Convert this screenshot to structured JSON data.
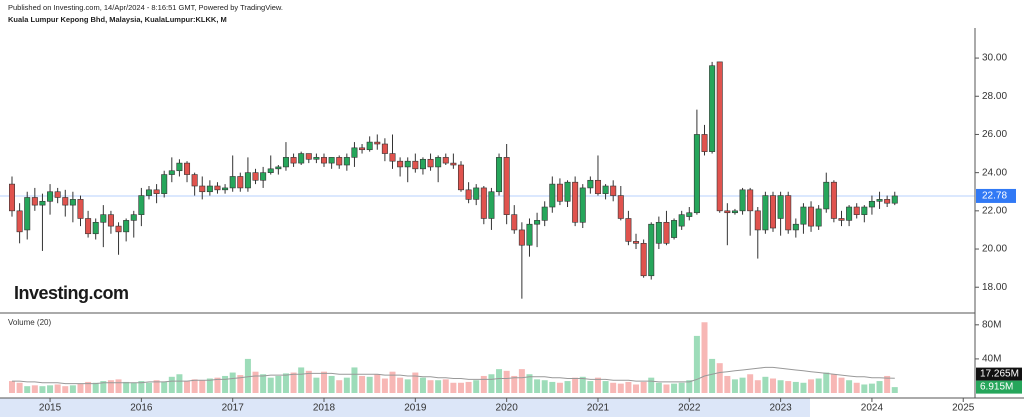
{
  "chart_data": {
    "type": "candlestick",
    "publisher": "Published on Investing.com, 14/Apr/2024 - 8:16:51 GMT, Powered by TradingView.",
    "title": "Kuala Lumpur Kepong Bhd, Malaysia, KualaLumpur:KLKK, M",
    "logo": "Investing.com",
    "up_color": "#26a65b",
    "down_color": "#e0534e",
    "price_line_color": "#3179f5",
    "categories": [
      null,
      null,
      null,
      null,
      null,
      "2015",
      null,
      null,
      null,
      null,
      null,
      null,
      null,
      null,
      null,
      null,
      null,
      "2016",
      null,
      null,
      null,
      null,
      null,
      null,
      null,
      null,
      null,
      null,
      null,
      "2017",
      null,
      null,
      null,
      null,
      null,
      null,
      null,
      null,
      null,
      null,
      null,
      "2018",
      null,
      null,
      null,
      null,
      null,
      null,
      null,
      null,
      null,
      null,
      null,
      "2019",
      null,
      null,
      null,
      null,
      null,
      null,
      null,
      null,
      null,
      null,
      null,
      "2020",
      null,
      null,
      null,
      null,
      null,
      null,
      null,
      null,
      null,
      null,
      null,
      "2021",
      null,
      null,
      null,
      null,
      null,
      null,
      null,
      null,
      null,
      null,
      null,
      "2022",
      null,
      null,
      null,
      null,
      null,
      null,
      null,
      null,
      null,
      null,
      null,
      "2023",
      null,
      null,
      null,
      null,
      null,
      null,
      null,
      null,
      null,
      null,
      null,
      "2024",
      null,
      null,
      null,
      null,
      null,
      null,
      null,
      null,
      null,
      null,
      null,
      "2025"
    ],
    "ohlc": [
      [
        23.4,
        23.8,
        21.7,
        22.0
      ],
      [
        22.0,
        22.4,
        20.3,
        20.9
      ],
      [
        21.0,
        23.0,
        20.5,
        22.7
      ],
      [
        22.7,
        23.2,
        22.0,
        22.3
      ],
      [
        22.3,
        22.9,
        19.9,
        22.5
      ],
      [
        22.5,
        23.4,
        21.8,
        23.0
      ],
      [
        23.0,
        23.2,
        22.4,
        22.7
      ],
      [
        22.7,
        23.1,
        21.7,
        22.3
      ],
      [
        22.3,
        23.0,
        21.4,
        22.6
      ],
      [
        22.6,
        22.8,
        21.2,
        21.6
      ],
      [
        21.6,
        22.0,
        20.6,
        20.8
      ],
      [
        20.8,
        21.6,
        20.5,
        21.4
      ],
      [
        21.4,
        22.3,
        20.1,
        21.8
      ],
      [
        21.8,
        22.0,
        20.8,
        21.2
      ],
      [
        21.2,
        21.4,
        19.7,
        20.9
      ],
      [
        20.9,
        21.6,
        20.4,
        21.5
      ],
      [
        21.5,
        22.0,
        20.6,
        21.8
      ],
      [
        21.8,
        23.2,
        21.2,
        22.8
      ],
      [
        22.8,
        23.3,
        22.6,
        23.1
      ],
      [
        23.1,
        23.4,
        22.4,
        22.9
      ],
      [
        22.9,
        24.1,
        22.7,
        23.9
      ],
      [
        23.9,
        24.8,
        23.5,
        24.1
      ],
      [
        24.1,
        24.7,
        23.8,
        24.5
      ],
      [
        24.5,
        24.6,
        23.5,
        23.9
      ],
      [
        23.9,
        24.0,
        22.8,
        23.3
      ],
      [
        23.3,
        23.8,
        22.6,
        23.0
      ],
      [
        23.0,
        23.6,
        22.8,
        23.3
      ],
      [
        23.3,
        23.5,
        22.9,
        23.1
      ],
      [
        23.1,
        23.4,
        22.9,
        23.2
      ],
      [
        23.2,
        24.9,
        23.0,
        23.8
      ],
      [
        23.8,
        24.0,
        23.0,
        23.2
      ],
      [
        23.2,
        24.8,
        23.0,
        24.0
      ],
      [
        24.0,
        24.2,
        23.4,
        23.6
      ],
      [
        23.6,
        24.3,
        23.2,
        24.0
      ],
      [
        24.0,
        24.9,
        23.9,
        24.2
      ],
      [
        24.2,
        24.4,
        23.9,
        24.3
      ],
      [
        24.3,
        25.6,
        24.1,
        24.8
      ],
      [
        24.8,
        25.0,
        24.3,
        24.5
      ],
      [
        24.5,
        25.1,
        24.4,
        25.0
      ],
      [
        25.0,
        25.0,
        24.5,
        24.7
      ],
      [
        24.7,
        25.0,
        24.5,
        24.8
      ],
      [
        24.8,
        25.0,
        24.3,
        24.5
      ],
      [
        24.5,
        24.8,
        24.2,
        24.8
      ],
      [
        24.8,
        24.9,
        24.2,
        24.4
      ],
      [
        24.4,
        25.0,
        24.1,
        24.8
      ],
      [
        24.8,
        25.6,
        24.3,
        25.3
      ],
      [
        25.3,
        25.5,
        25.0,
        25.2
      ],
      [
        25.2,
        25.9,
        25.1,
        25.6
      ],
      [
        25.6,
        26.0,
        25.2,
        25.5
      ],
      [
        25.5,
        25.8,
        24.6,
        25.0
      ],
      [
        25.0,
        26.0,
        24.2,
        24.6
      ],
      [
        24.6,
        24.8,
        23.8,
        24.3
      ],
      [
        24.3,
        24.8,
        23.5,
        24.6
      ],
      [
        24.6,
        25.0,
        24.0,
        24.2
      ],
      [
        24.2,
        24.8,
        23.9,
        24.7
      ],
      [
        24.7,
        25.0,
        24.1,
        24.3
      ],
      [
        24.3,
        24.9,
        23.5,
        24.8
      ],
      [
        24.8,
        25.0,
        24.4,
        24.5
      ],
      [
        24.5,
        25.0,
        24.2,
        24.4
      ],
      [
        24.4,
        24.6,
        23.0,
        23.1
      ],
      [
        23.1,
        23.5,
        22.4,
        22.6
      ],
      [
        22.6,
        23.4,
        22.3,
        23.2
      ],
      [
        23.2,
        23.3,
        21.3,
        21.6
      ],
      [
        21.6,
        23.2,
        21.0,
        23.0
      ],
      [
        23.0,
        25.0,
        22.8,
        24.8
      ],
      [
        24.8,
        25.5,
        21.3,
        21.8
      ],
      [
        21.8,
        22.3,
        20.8,
        21.0
      ],
      [
        21.0,
        21.4,
        17.4,
        20.2
      ],
      [
        20.2,
        21.6,
        19.6,
        21.3
      ],
      [
        21.3,
        21.9,
        20.1,
        21.5
      ],
      [
        21.5,
        22.5,
        21.2,
        22.2
      ],
      [
        22.2,
        23.8,
        21.9,
        23.4
      ],
      [
        23.4,
        23.7,
        22.3,
        22.5
      ],
      [
        22.5,
        23.6,
        22.2,
        23.5
      ],
      [
        23.5,
        23.8,
        21.2,
        21.4
      ],
      [
        21.4,
        23.4,
        21.1,
        23.2
      ],
      [
        23.2,
        23.8,
        22.9,
        23.6
      ],
      [
        23.6,
        24.9,
        22.8,
        22.9
      ],
      [
        22.9,
        23.4,
        22.6,
        23.3
      ],
      [
        23.3,
        23.6,
        22.5,
        22.8
      ],
      [
        22.8,
        23.3,
        21.5,
        21.6
      ],
      [
        21.6,
        22.0,
        20.2,
        20.4
      ],
      [
        20.4,
        20.8,
        20.0,
        20.3
      ],
      [
        20.3,
        20.5,
        18.5,
        18.6
      ],
      [
        18.6,
        21.4,
        18.4,
        21.3
      ],
      [
        20.3,
        21.7,
        20.0,
        21.4
      ],
      [
        21.4,
        22.0,
        20.2,
        20.3
      ],
      [
        20.6,
        21.6,
        20.5,
        21.5
      ],
      [
        21.2,
        22.0,
        21.0,
        21.8
      ],
      [
        21.7,
        22.2,
        21.5,
        21.9
      ],
      [
        21.9,
        27.3,
        21.8,
        26.0
      ],
      [
        26.0,
        26.5,
        24.9,
        25.1
      ],
      [
        25.1,
        29.8,
        25.0,
        29.6
      ],
      [
        29.8,
        29.8,
        21.9,
        22.0
      ],
      [
        22.0,
        22.4,
        20.2,
        21.9
      ],
      [
        21.9,
        22.1,
        21.8,
        22.0
      ],
      [
        22.0,
        23.2,
        21.8,
        23.1
      ],
      [
        23.1,
        23.2,
        20.7,
        22.0
      ],
      [
        22.0,
        22.2,
        19.5,
        21.0
      ],
      [
        21.0,
        23.0,
        20.8,
        22.8
      ],
      [
        22.8,
        23.0,
        20.9,
        21.1
      ],
      [
        21.6,
        23.0,
        20.7,
        22.8
      ],
      [
        22.8,
        23.0,
        20.8,
        21.0
      ],
      [
        21.0,
        21.6,
        20.6,
        21.3
      ],
      [
        21.3,
        22.4,
        20.8,
        22.2
      ],
      [
        22.2,
        22.5,
        20.9,
        21.2
      ],
      [
        21.2,
        22.3,
        21.0,
        22.1
      ],
      [
        22.1,
        24.0,
        21.9,
        23.5
      ],
      [
        23.5,
        23.6,
        21.4,
        21.6
      ],
      [
        21.6,
        22.0,
        21.2,
        21.5
      ],
      [
        21.5,
        22.3,
        21.2,
        22.2
      ],
      [
        22.2,
        22.4,
        21.6,
        21.8
      ],
      [
        21.8,
        22.3,
        21.4,
        22.2
      ],
      [
        22.2,
        22.8,
        21.8,
        22.5
      ],
      [
        22.5,
        23.0,
        22.1,
        22.6
      ],
      [
        22.6,
        22.8,
        22.2,
        22.4
      ],
      [
        22.4,
        23.0,
        22.3,
        22.78
      ],
      null,
      null,
      null,
      null,
      null,
      null,
      null,
      null,
      null
    ],
    "ylim": [
      16.65,
      31.47
    ],
    "yticks": [
      {
        "value": 18,
        "label": "18.00"
      },
      {
        "value": 20,
        "label": "20.00"
      },
      {
        "value": 22,
        "label": "22.00"
      },
      {
        "value": 24,
        "label": "24.00"
      },
      {
        "value": 26,
        "label": "26.00"
      },
      {
        "value": 28,
        "label": "28.00"
      },
      {
        "value": 30,
        "label": "30.00"
      }
    ],
    "volume": {
      "title": "Volume (20)",
      "up_color": "#9ddcb9",
      "down_color": "#f7b7b5",
      "ma_color": "#999999",
      "values": [
        14,
        12,
        8,
        9,
        8,
        9,
        10,
        8,
        9,
        11,
        13,
        12,
        14,
        15,
        16,
        13,
        12,
        14,
        12,
        15,
        13,
        19,
        22,
        14,
        16,
        15,
        17,
        18,
        20,
        24,
        21,
        40,
        25,
        22,
        18,
        20,
        23,
        24,
        30,
        26,
        18,
        25,
        20,
        15,
        18,
        30,
        20,
        19,
        22,
        17,
        25,
        18,
        16,
        24,
        18,
        15,
        15,
        16,
        12,
        12,
        13,
        15,
        20,
        22,
        28,
        26,
        20,
        28,
        22,
        16,
        15,
        13,
        12,
        14,
        18,
        19,
        14,
        18,
        14,
        12,
        11,
        13,
        10,
        13,
        18,
        12,
        10,
        11,
        12,
        15,
        67,
        83,
        40,
        35,
        20,
        16,
        18,
        22,
        15,
        19,
        17,
        15,
        14,
        13,
        12,
        16,
        17,
        24,
        22,
        18,
        15,
        12,
        10,
        11,
        14,
        20,
        6.915,
        null,
        null,
        null,
        null,
        null,
        null,
        null,
        null,
        null
      ],
      "ma": [
        14,
        14,
        13,
        13,
        12,
        12,
        12,
        11,
        11,
        11,
        11,
        11,
        12,
        12,
        12,
        12,
        12,
        12,
        13,
        13,
        13,
        14,
        14,
        14,
        15,
        15,
        15,
        16,
        16,
        17,
        18,
        19,
        20,
        20,
        21,
        21,
        21,
        22,
        22,
        23,
        23,
        23,
        23,
        22,
        22,
        22,
        22,
        22,
        22,
        21,
        21,
        21,
        20,
        20,
        19,
        19,
        18,
        18,
        17,
        17,
        16,
        16,
        16,
        16,
        17,
        17,
        18,
        18,
        19,
        19,
        19,
        18,
        18,
        17,
        17,
        17,
        16,
        16,
        16,
        15,
        15,
        15,
        14,
        14,
        14,
        13,
        13,
        13,
        13,
        13,
        16,
        20,
        22,
        24,
        25,
        26,
        27,
        28,
        29,
        30,
        30,
        29,
        28,
        27,
        26,
        25,
        24,
        23,
        22,
        21,
        20,
        19,
        19,
        18,
        18,
        17.5,
        17.265,
        null,
        null,
        null,
        null,
        null,
        null,
        null,
        null,
        null
      ],
      "ma_label": "17.265M",
      "last_label": "6.915M",
      "ylim": [
        0,
        88
      ],
      "yticks": [
        {
          "value": 40,
          "label": "40M"
        },
        {
          "value": 80,
          "label": "80M"
        }
      ]
    }
  }
}
